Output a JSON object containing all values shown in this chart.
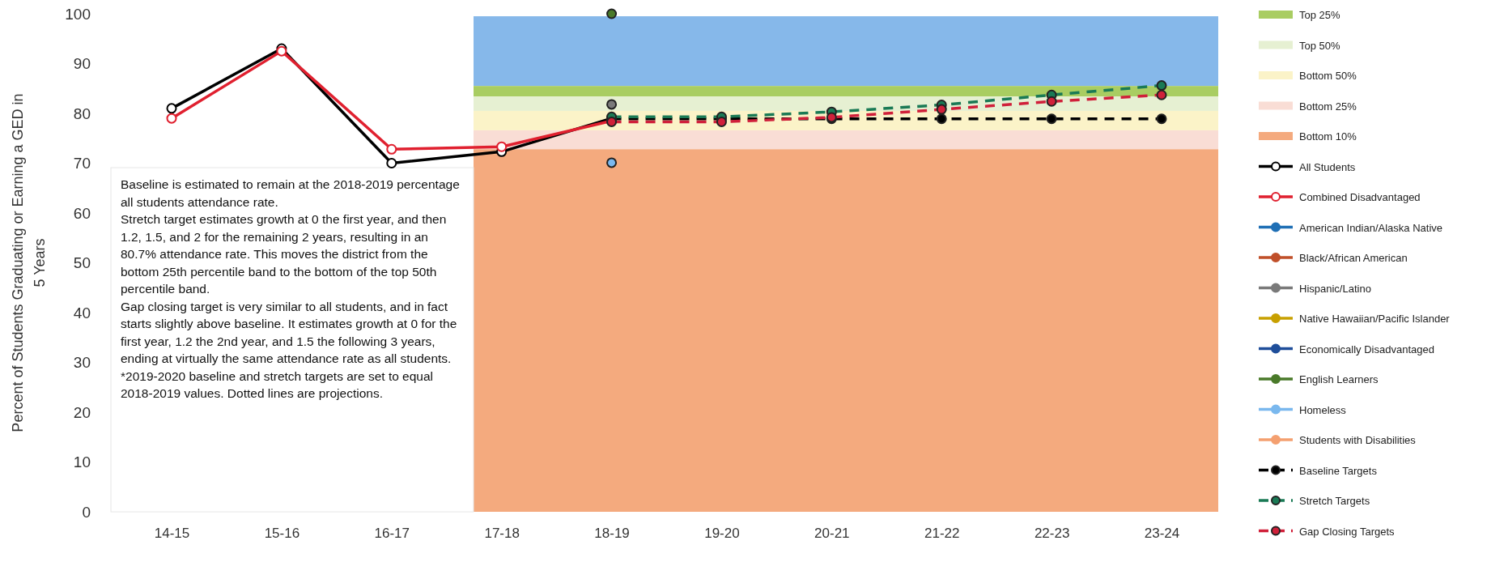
{
  "chart_data": {
    "type": "line",
    "ylabel": "Percent of Students Graduating or Earning a GED in 5 Years",
    "categories": [
      "14-15",
      "15-16",
      "16-17",
      "17-18",
      "18-19",
      "19-20",
      "20-21",
      "21-22",
      "22-23",
      "23-24"
    ],
    "ylim": [
      0,
      100
    ],
    "yticks": [
      0,
      10,
      20,
      30,
      40,
      50,
      60,
      70,
      80,
      90,
      100
    ],
    "grid": false,
    "legend": "right",
    "marker": "circle",
    "bands": [
      {
        "axis": "y",
        "from": 85.5,
        "to": 99.5,
        "label": null,
        "color": "#86b8ea"
      },
      {
        "axis": "y",
        "from": 83.4,
        "to": 85.5,
        "label": "Top 25%",
        "color": "#a9cd62"
      },
      {
        "axis": "y",
        "from": 80.5,
        "to": 83.4,
        "label": "Top 50%",
        "color": "#e6f0d2"
      },
      {
        "axis": "y",
        "from": 76.6,
        "to": 80.5,
        "label": "Bottom 50%",
        "color": "#fbf3c8"
      },
      {
        "axis": "y",
        "from": 72.8,
        "to": 76.6,
        "label": "Bottom 25%",
        "color": "#f9ddd5"
      },
      {
        "axis": "y",
        "from": 0,
        "to": 72.8,
        "label": "Bottom 10%",
        "color": "#f4aa7e"
      }
    ],
    "series": [
      {
        "name": "All Students",
        "color": "#000000",
        "line_style": "solid",
        "values": [
          81,
          93,
          70,
          72.3,
          79,
          null,
          null,
          null,
          null,
          null
        ]
      },
      {
        "name": "Combined Disadvantaged",
        "color": "#e0202f",
        "line_style": "solid",
        "values": [
          79,
          92.5,
          72.8,
          73.3,
          78.5,
          null,
          null,
          null,
          null,
          null
        ]
      },
      {
        "name": "American Indian/Alaska Native",
        "color": "#1f6fb5",
        "line_style": "solid",
        "values": [
          null,
          null,
          null,
          null,
          null,
          null,
          null,
          null,
          null,
          null
        ]
      },
      {
        "name": "Black/African American",
        "color": "#c0502a",
        "line_style": "solid",
        "values": [
          null,
          null,
          null,
          null,
          null,
          null,
          null,
          null,
          null,
          null
        ]
      },
      {
        "name": "Hispanic/Latino",
        "color": "#7a7a7a",
        "line_style": "solid",
        "values": [
          null,
          null,
          null,
          null,
          81.8,
          null,
          null,
          null,
          null,
          null
        ]
      },
      {
        "name": "Native Hawaiian/Pacific Islander",
        "color": "#c8a000",
        "line_style": "solid",
        "values": [
          null,
          null,
          null,
          null,
          null,
          null,
          null,
          null,
          null,
          null
        ]
      },
      {
        "name": "Economically Disadvantaged",
        "color": "#1f4e9a",
        "line_style": "solid",
        "values": [
          null,
          null,
          null,
          null,
          null,
          null,
          null,
          null,
          null,
          null
        ]
      },
      {
        "name": "English Learners",
        "color": "#4a7a2a",
        "line_style": "solid",
        "values": [
          null,
          null,
          null,
          null,
          100,
          null,
          null,
          null,
          null,
          null
        ]
      },
      {
        "name": "Homeless",
        "color": "#7ab8ee",
        "line_style": "solid",
        "values": [
          null,
          null,
          null,
          null,
          70.1,
          null,
          null,
          null,
          null,
          null
        ]
      },
      {
        "name": "Students with Disabilities",
        "color": "#f4a070",
        "line_style": "solid",
        "values": [
          null,
          null,
          null,
          null,
          null,
          null,
          null,
          null,
          null,
          null
        ]
      },
      {
        "name": "Baseline Targets",
        "color": "#000000",
        "line_style": "dashed",
        "values": [
          null,
          null,
          null,
          null,
          78.9,
          78.9,
          78.9,
          78.9,
          78.9,
          78.9
        ]
      },
      {
        "name": "Stretch Targets",
        "color": "#1a7a55",
        "line_style": "dashed",
        "values": [
          null,
          null,
          null,
          null,
          79.3,
          79.3,
          80.3,
          81.7,
          83.7,
          85.6
        ]
      },
      {
        "name": "Gap Closing Targets",
        "color": "#d0203a",
        "line_style": "dashed",
        "values": [
          null,
          null,
          null,
          null,
          78.3,
          78.3,
          79.2,
          80.8,
          82.4,
          83.7
        ]
      }
    ],
    "annotations": [
      "Baseline is estimated to remain at the 2018-2019 percentage all students attendance rate.",
      "Stretch target estimates growth at 0 the first year, and then 1.2, 1.5, and 2 for the remaining 2 years, resulting in an 80.7% attendance rate. This moves the district from the bottom 25th percentile band to the bottom of the top 50th percentile band.",
      "Gap closing target is very similar to all students, and in fact starts slightly above baseline. It estimates growth at 0 for the first year, 1.2 the 2nd year, and 1.5 the following 3 years, ending at virtually the same attendance rate as all students.",
      "*2019-2020 baseline and stretch targets are set to equal 2018-2019 values. Dotted lines are projections."
    ]
  }
}
